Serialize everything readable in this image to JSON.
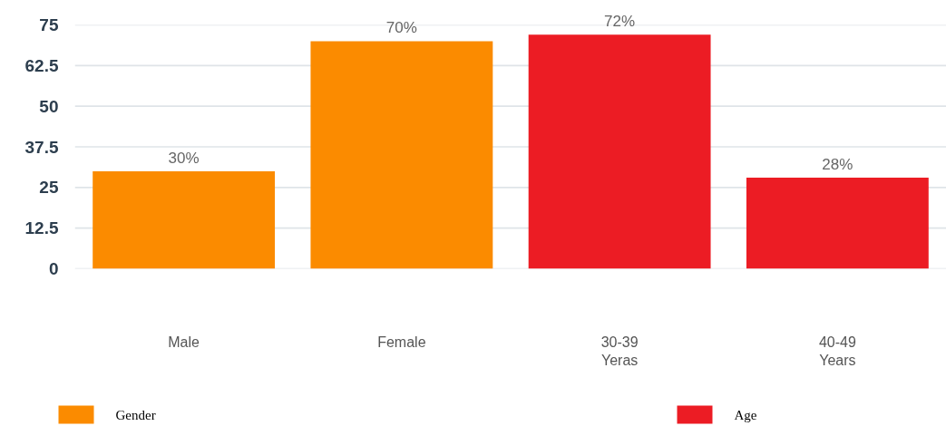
{
  "chart_data": {
    "type": "bar",
    "categories": [
      "Male",
      "Female",
      "30-39\nYeras",
      "40-49\nYears"
    ],
    "series": [
      {
        "name": "Gender",
        "color": "#fb8b00",
        "values": [
          30,
          70,
          null,
          null
        ],
        "value_labels": [
          "30%",
          "70%",
          null,
          null
        ]
      },
      {
        "name": "Age",
        "color": "#ec1c24",
        "values": [
          null,
          null,
          72,
          28
        ],
        "value_labels": [
          null,
          null,
          "72%",
          "28%"
        ]
      }
    ],
    "ylim": [
      0,
      75
    ],
    "yticks": [
      0,
      12.5,
      25,
      37.5,
      50,
      62.5,
      75
    ],
    "grid": "y",
    "legend": "bottom"
  }
}
